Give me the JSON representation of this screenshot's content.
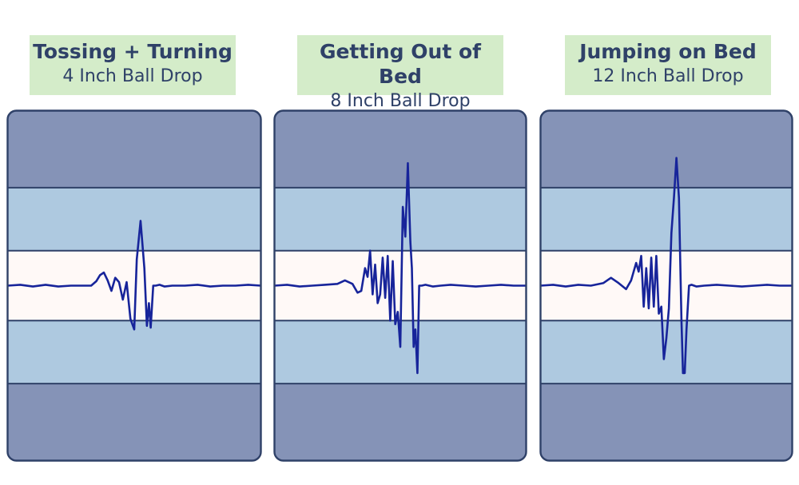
{
  "colors": {
    "outer_band": "#8593b7",
    "middle_band": "#aec9e0",
    "center_band": "#fff9f7",
    "divider": "#2f4168",
    "trace": "#17249a",
    "label_bg": "#d4ecc9",
    "label_text": "#2f4168"
  },
  "chart_data": [
    {
      "type": "line",
      "title": "Tossing + Turning",
      "subtitle": "4 Inch Ball Drop",
      "xlabel": "",
      "ylabel": "",
      "xlim": [
        0,
        100
      ],
      "ylim": [
        -1,
        1
      ],
      "grid": false,
      "band_edges": [
        -0.56,
        -0.2,
        0.2,
        0.56
      ],
      "series": [
        {
          "x": [
            0,
            5,
            10,
            15,
            20,
            25,
            30,
            33,
            35,
            36.5,
            38,
            39.5,
            41,
            42.5,
            44,
            45.5,
            47,
            48.5,
            50,
            51,
            52.5,
            54,
            55,
            55.8,
            56.5,
            57.5,
            58.5,
            60,
            62,
            65,
            70,
            75,
            80,
            85,
            90,
            95,
            100
          ],
          "y": [
            0,
            0.005,
            -0.005,
            0.005,
            -0.005,
            0,
            0,
            0,
            0.025,
            0.06,
            0.075,
            0.03,
            -0.03,
            0.045,
            0.02,
            -0.08,
            0.02,
            -0.19,
            -0.25,
            0.15,
            0.37,
            0.1,
            -0.23,
            -0.1,
            -0.24,
            0,
            0,
            0.005,
            -0.005,
            0,
            0,
            0.005,
            -0.005,
            0,
            0,
            0.005,
            0
          ]
        }
      ]
    },
    {
      "type": "line",
      "title": "Getting Out of Bed",
      "subtitle": "8 Inch Ball Drop",
      "xlabel": "",
      "ylabel": "",
      "xlim": [
        0,
        100
      ],
      "ylim": [
        -1,
        1
      ],
      "grid": false,
      "band_edges": [
        -0.56,
        -0.2,
        0.2,
        0.56
      ],
      "series": [
        {
          "x": [
            0,
            5,
            10,
            15,
            20,
            25,
            28,
            31,
            33,
            34.5,
            36,
            37,
            38,
            39,
            40,
            41,
            42,
            43,
            44,
            45,
            46,
            47,
            48,
            49,
            50,
            51,
            52,
            53,
            54,
            54.6,
            55.3,
            56,
            56.8,
            57.5,
            58.5,
            60,
            63,
            66,
            70,
            75,
            80,
            85,
            90,
            95,
            100
          ],
          "y": [
            0,
            0.005,
            -0.005,
            0,
            0.005,
            0.01,
            0.03,
            0.01,
            -0.04,
            -0.03,
            0.1,
            0.05,
            0.2,
            -0.05,
            0.12,
            -0.1,
            -0.05,
            0.16,
            -0.07,
            0.17,
            -0.2,
            0.14,
            -0.22,
            -0.15,
            -0.35,
            0.45,
            0.28,
            0.7,
            0.25,
            0.1,
            -0.35,
            -0.25,
            -0.5,
            0,
            0,
            0.005,
            -0.005,
            0,
            0.005,
            0,
            -0.005,
            0,
            0.005,
            0,
            0
          ]
        }
      ]
    },
    {
      "type": "line",
      "title": "Jumping on Bed",
      "subtitle": "12 Inch Ball Drop",
      "xlabel": "",
      "ylabel": "",
      "xlim": [
        0,
        100
      ],
      "ylim": [
        -1,
        1
      ],
      "grid": false,
      "band_edges": [
        -0.56,
        -0.2,
        0.2,
        0.56
      ],
      "series": [
        {
          "x": [
            0,
            5,
            10,
            15,
            20,
            25,
            28,
            31,
            34,
            36,
            38,
            39,
            40,
            41,
            42,
            43,
            44,
            45,
            46,
            47,
            48,
            49,
            50,
            51,
            52,
            53,
            54,
            55,
            56,
            56.6,
            57.3,
            58,
            59,
            60,
            62,
            65,
            70,
            75,
            80,
            85,
            90,
            95,
            100
          ],
          "y": [
            0,
            0.005,
            -0.005,
            0.005,
            0,
            0.015,
            0.045,
            0.015,
            -0.02,
            0.03,
            0.13,
            0.08,
            0.17,
            -0.12,
            0.1,
            -0.13,
            0.16,
            -0.12,
            0.17,
            -0.16,
            -0.12,
            -0.42,
            -0.3,
            -0.13,
            0.3,
            0.5,
            0.73,
            0.5,
            -0.2,
            -0.5,
            -0.5,
            -0.25,
            0,
            0.005,
            -0.005,
            0,
            0.005,
            0,
            -0.005,
            0,
            0.005,
            0,
            0
          ]
        }
      ]
    }
  ]
}
